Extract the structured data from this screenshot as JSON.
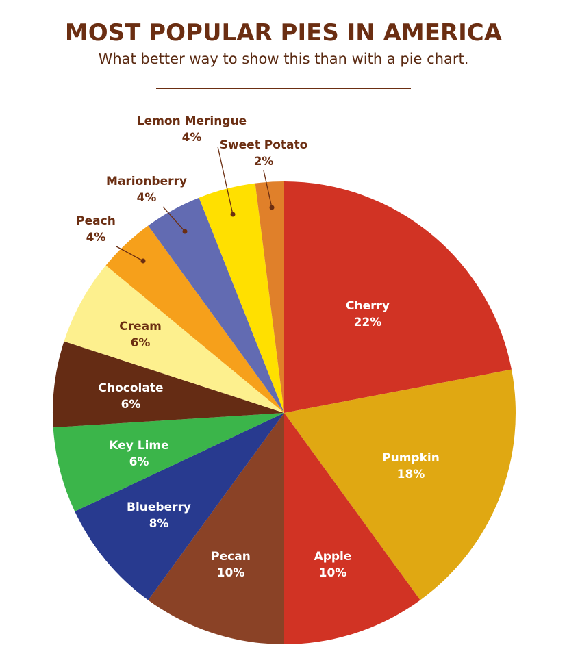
{
  "title": "MOST POPULAR PIES IN AMERICA",
  "subtitle": "What better way to show this than with a pie chart.",
  "chart_data": {
    "type": "pie",
    "title": "MOST POPULAR PIES IN AMERICA",
    "subtitle": "What better way to show this than with a pie chart.",
    "start": "top, clockwise",
    "slices": [
      {
        "label": "Cherry",
        "value": 22,
        "text": "22%",
        "color": "#d13324",
        "label_color": "#ffffff"
      },
      {
        "label": "Pumpkin",
        "value": 18,
        "text": "18%",
        "color": "#e0a812",
        "label_color": "#ffffff"
      },
      {
        "label": "Apple",
        "value": 10,
        "text": "10%",
        "color": "#d13324",
        "label_color": "#ffffff"
      },
      {
        "label": "Pecan",
        "value": 10,
        "text": "10%",
        "color": "#8a4226",
        "label_color": "#ffffff"
      },
      {
        "label": "Blueberry",
        "value": 8,
        "text": "8%",
        "color": "#283a8f",
        "label_color": "#ffffff"
      },
      {
        "label": "Key Lime",
        "value": 6,
        "text": "6%",
        "color": "#3bb54a",
        "label_color": "#ffffff"
      },
      {
        "label": "Chocolate",
        "value": 6,
        "text": "6%",
        "color": "#652c14",
        "label_color": "#ffffff"
      },
      {
        "label": "Cream",
        "value": 6,
        "text": "6%",
        "color": "#fdf08e",
        "label_color": "#6b2e12"
      },
      {
        "label": "Peach",
        "value": 4,
        "text": "4%",
        "color": "#f6a01b",
        "label_color": "#6b2e12"
      },
      {
        "label": "Marionberry",
        "value": 4,
        "text": "4%",
        "color": "#626bb2",
        "label_color": "#6b2e12"
      },
      {
        "label": "Lemon Meringue",
        "value": 4,
        "text": "4%",
        "color": "#ffe000",
        "label_color": "#6b2e12"
      },
      {
        "label": "Sweet Potato",
        "value": 2,
        "text": "2%",
        "color": "#e0802a",
        "label_color": "#6b2e12"
      }
    ]
  }
}
